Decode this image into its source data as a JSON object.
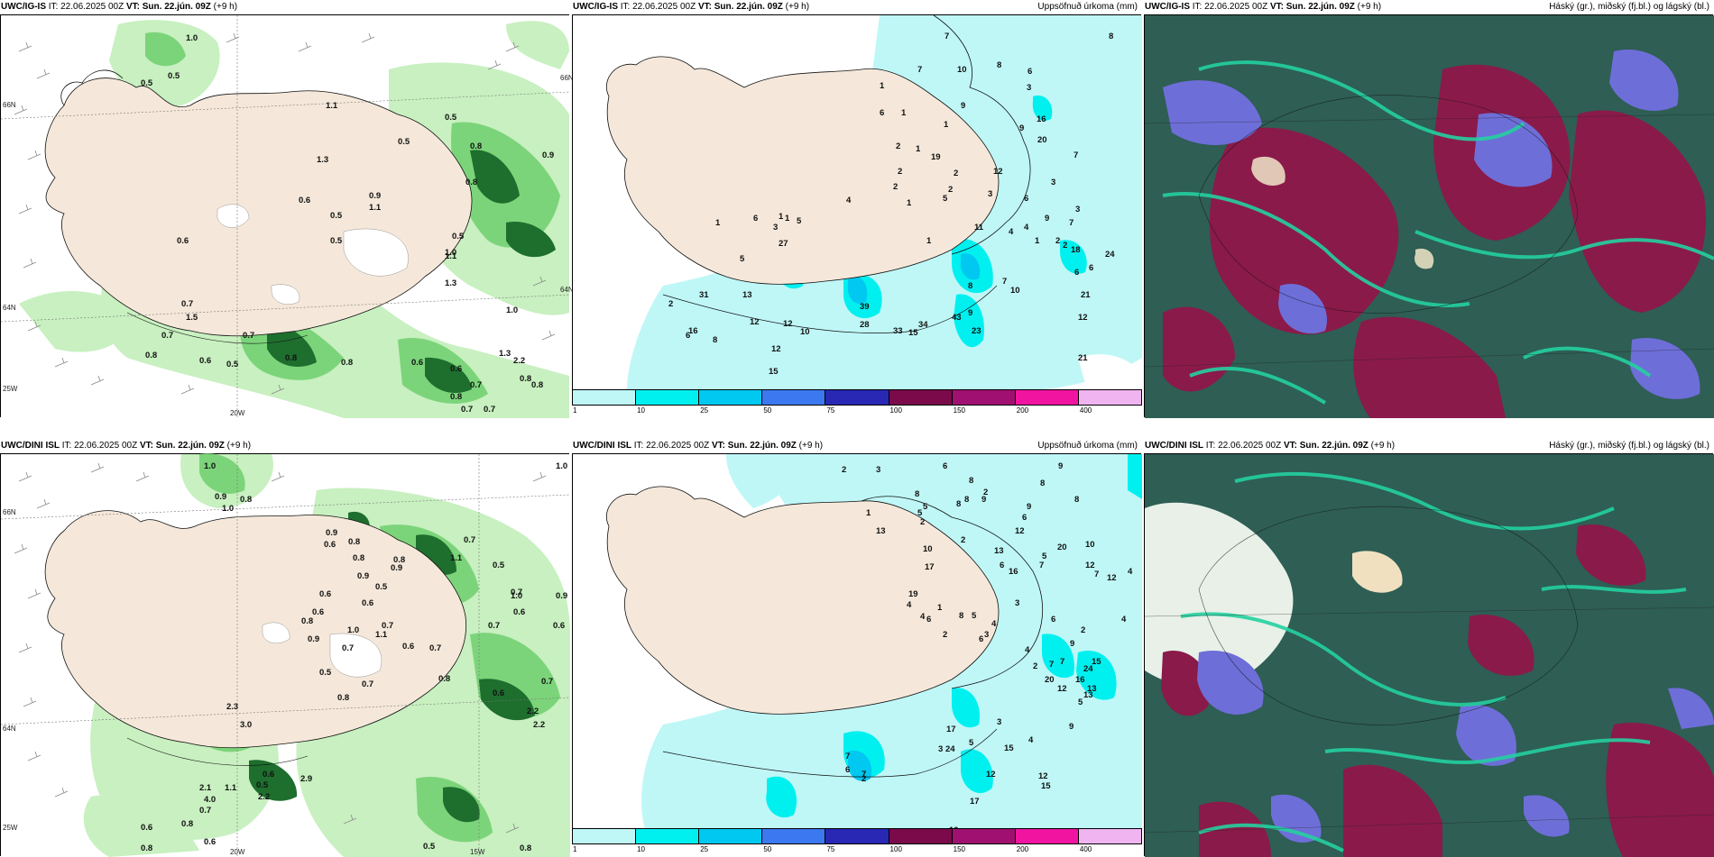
{
  "panels": [
    {
      "id": "tl",
      "kind": "wind",
      "header": {
        "model": "UWC/IG-IS",
        "it": "IT: 22.06.2025 00Z",
        "vt": "VT: Sun. 22.jún. 09Z",
        "lead": "(+9 h)",
        "right": ""
      },
      "coords": {
        "lat66": "66N",
        "lat64": "64N",
        "lon25": "25W",
        "lon20": "20W",
        "lat66r": "66N",
        "lat64r": "64N"
      },
      "labels": [
        "1.0",
        "0.5",
        "0.5",
        "1.1",
        "0.5",
        "0.5",
        "1.3",
        "0.8",
        "0.9",
        "0.8",
        "0.6",
        "0.9",
        "1.1",
        "0.5",
        "0.5",
        "0.6",
        "0.5",
        "1.0",
        "1.1",
        "1.3",
        "0.7",
        "1.0",
        "1.5",
        "0.7",
        "0.7",
        "1.3",
        "0.8",
        "0.8",
        "0.5",
        "0.6",
        "0.8",
        "0.6",
        "0.6",
        "2.2",
        "0.8",
        "0.8",
        "0.7",
        "0.7",
        "0.7",
        "0.8"
      ]
    },
    {
      "id": "tm",
      "kind": "precip",
      "header": {
        "model": "UWC/IG-IS",
        "it": "IT: 22.06.2025 00Z",
        "vt": "VT: Sun. 22.jún. 09Z",
        "lead": "(+9 h)",
        "right": "Uppsöfnuð úrkoma (mm)"
      },
      "labels": [
        "7",
        "8",
        "7",
        "10",
        "8",
        "6",
        "1",
        "3",
        "9",
        "6",
        "16",
        "1",
        "1",
        "20",
        "9",
        "2",
        "1",
        "19",
        "7",
        "2",
        "12",
        "2",
        "2",
        "3",
        "2",
        "6",
        "1",
        "3",
        "6",
        "4",
        "5",
        "3",
        "1",
        "1",
        "5",
        "9",
        "1",
        "3",
        "7",
        "2",
        "1",
        "4",
        "1",
        "6",
        "27",
        "11",
        "5",
        "7",
        "4",
        "2",
        "6",
        "24",
        "18",
        "8",
        "10",
        "9",
        "21",
        "12",
        "31",
        "12",
        "13",
        "39",
        "34",
        "33",
        "15",
        "12",
        "12",
        "10",
        "28",
        "8",
        "15",
        "21",
        "2",
        "6",
        "16",
        "23",
        "43"
      ],
      "colorbar": {
        "ticks": [
          "1",
          "10",
          "25",
          "50",
          "75",
          "100",
          "150",
          "200",
          "400"
        ],
        "colors": [
          "#bff7f7",
          "#00f0f0",
          "#00c8f0",
          "#3c78f0",
          "#2828b4",
          "#7a0a4a",
          "#a01070",
          "#f014a0",
          "#f0b4f0"
        ]
      }
    },
    {
      "id": "tr",
      "kind": "cloud",
      "header": {
        "model": "UWC/IG-IS",
        "it": "IT: 22.06.2025 00Z",
        "vt": "VT: Sun. 22.jún. 09Z",
        "lead": "(+9 h)",
        "right": "Háský (gr.), miðský (fj.bl.) og lágský (bl.)"
      }
    },
    {
      "id": "bl",
      "kind": "wind",
      "header": {
        "model": "UWC/DINI ISL",
        "it": "IT: 22.06.2025 00Z",
        "vt": "VT: Sun. 22.jún. 09Z",
        "lead": "(+9 h)",
        "right": ""
      },
      "coords": {
        "lat66": "66N",
        "lat64": "64N",
        "lon25": "25W",
        "lon20": "20W",
        "lon15": "15W"
      },
      "labels": [
        "1.0",
        "0.9",
        "0.8",
        "1.0",
        "1.0",
        "0.9",
        "0.6",
        "0.8",
        "0.7",
        "0.8",
        "0.9",
        "0.9",
        "0.8",
        "1.1",
        "0.5",
        "0.5",
        "0.6",
        "0.6",
        "0.6",
        "0.7",
        "1.0",
        "0.9",
        "0.6",
        "0.7",
        "0.7",
        "0.8",
        "1.1",
        "1.0",
        "0.6",
        "0.7",
        "0.9",
        "0.6",
        "0.7",
        "0.7",
        "0.5",
        "0.8",
        "0.6",
        "0.7",
        "0.8",
        "2.2",
        "2.3",
        "3.0",
        "2.2",
        "0.6",
        "0.5",
        "2.9",
        "2.2",
        "2.1",
        "1.1",
        "4.0",
        "0.7",
        "0.6",
        "0.8",
        "0.6",
        "0.5",
        "0.8",
        "0.8"
      ]
    },
    {
      "id": "bm",
      "kind": "precip",
      "header": {
        "model": "UWC/DINI ISL",
        "it": "IT: 22.06.2025 00Z",
        "vt": "VT: Sun. 22.jún. 09Z",
        "lead": "(+9 h)",
        "right": "Uppsöfnuð úrkoma (mm)"
      },
      "labels": [
        "2",
        "3",
        "6",
        "9",
        "8",
        "8",
        "2",
        "8",
        "9",
        "8",
        "1",
        "5",
        "5",
        "8",
        "8",
        "9",
        "2",
        "6",
        "12",
        "2",
        "13",
        "10",
        "13",
        "20",
        "17",
        "6",
        "5",
        "16",
        "12",
        "10",
        "7",
        "7",
        "12",
        "4",
        "4",
        "4",
        "6",
        "5",
        "8",
        "6",
        "4",
        "3",
        "2",
        "1",
        "3",
        "19",
        "6",
        "2",
        "4",
        "9",
        "4",
        "7",
        "15",
        "13",
        "24",
        "20",
        "16",
        "5",
        "13",
        "9",
        "7",
        "12",
        "4",
        "12",
        "17",
        "24",
        "3",
        "3",
        "5",
        "2",
        "7",
        "6",
        "7",
        "17",
        "10",
        "15",
        "2",
        "12",
        "15"
      ],
      "colorbar": {
        "ticks": [
          "1",
          "10",
          "25",
          "50",
          "75",
          "100",
          "150",
          "200",
          "400"
        ],
        "colors": [
          "#bff7f7",
          "#00f0f0",
          "#00c8f0",
          "#3c78f0",
          "#2828b4",
          "#7a0a4a",
          "#a01070",
          "#f014a0",
          "#f0b4f0"
        ]
      }
    },
    {
      "id": "br",
      "kind": "cloud",
      "header": {
        "model": "UWC/DINI ISL",
        "it": "IT: 22.06.2025 00Z",
        "vt": "VT: Sun. 22.jún. 09Z",
        "lead": "(+9 h)",
        "right": "Háský (gr.), miðský (fj.bl.) og lágský (bl.)"
      }
    }
  ],
  "colors": {
    "land": "#f5e8da",
    "sea_wind": "#ffffff",
    "precip_light": "#bff7f7",
    "precip_mid": "#00f0f0",
    "green_light": "#c8f0c0",
    "green_mid": "#7cd47a",
    "green_dark": "#1e6e2e",
    "cloud_high": "#2e5e54",
    "cloud_mid": "#8a1a4a",
    "cloud_low": "#6e6ed8",
    "cloud_edge": "#24d0a0"
  }
}
